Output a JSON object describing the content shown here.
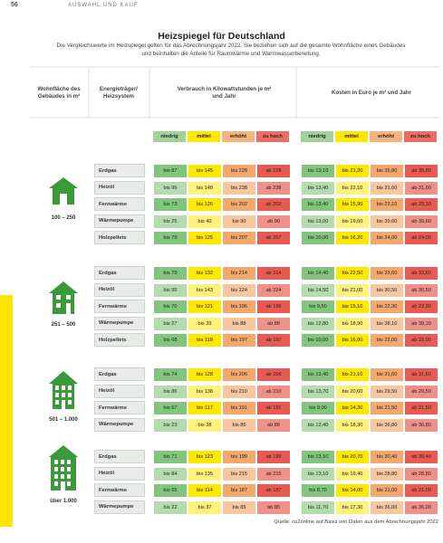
{
  "header": {
    "page": "56",
    "section": "AUSWAHL UND KAUF"
  },
  "title": "Heizspiegel für Deutschland",
  "subtitle": "Die Vergleichswerte im Heizspiegel gelten für das Abrechnungsjahr 2022. Sie beziehen sich auf die gesamte Wohnfläche eines Gebäudes und beinhalten die Anteile für Raumwärme und Warmwasserbereitung.",
  "columns": {
    "area": "Wohnfläche des Gebäudes in m²",
    "energy": "Energieträger/ Heizsystem",
    "consumption": "Verbrauch in Kilowattstunden je m² und Jahr",
    "costs": "Kosten in Euro je m² und Jahr"
  },
  "levels": [
    "niedrig",
    "mittel",
    "erhöht",
    "zu hoch"
  ],
  "groups": [
    {
      "area": "100 – 250",
      "rows": [
        {
          "energy": "Erdgas",
          "consumption": [
            "bis 87",
            "bis 145",
            "bis 228",
            "ab 228"
          ],
          "costs": [
            "bis 13,10",
            "bis 21,20",
            "bis 35,80",
            "ab 35,80"
          ]
        },
        {
          "energy": "Heizöl",
          "consumption": [
            "bis 95",
            "bis 148",
            "bis 238",
            "ab 238"
          ],
          "costs": [
            "bis 13,40",
            "bis 22,10",
            "bis 31,60",
            "ab 31,60"
          ]
        },
        {
          "energy": "Fernwärme",
          "consumption": [
            "bis 73",
            "bis 126",
            "bis 202",
            "ab 202"
          ],
          "costs": [
            "bis 13,40",
            "bis 15,90",
            "bis 23,10",
            "ab 23,10"
          ]
        },
        {
          "energy": "Wärmepumpe",
          "consumption": [
            "bis 25",
            "bis 40",
            "bis 90",
            "ab 90"
          ],
          "costs": [
            "bis 13,00",
            "bis 19,60",
            "bis 39,60",
            "ab 39,60"
          ]
        },
        {
          "energy": "Holzpellets",
          "consumption": [
            "bis 79",
            "bis 125",
            "bis 207",
            "ab 207"
          ],
          "costs": [
            "bis 10,00",
            "bis 16,20",
            "bis 24,00",
            "ab 24,00"
          ]
        }
      ]
    },
    {
      "area": "251 – 500",
      "rows": [
        {
          "energy": "Erdgas",
          "consumption": [
            "bis 79",
            "bis 132",
            "bis 214",
            "ab 214"
          ],
          "costs": [
            "bis 14,40",
            "bis 22,50",
            "bis 33,60",
            "ab 33,60"
          ]
        },
        {
          "energy": "Heizöl",
          "consumption": [
            "bis 90",
            "bis 143",
            "bis 224",
            "ab 224"
          ],
          "costs": [
            "bis 14,50",
            "bis 21,00",
            "bis 30,50",
            "ab 30,50"
          ]
        },
        {
          "energy": "Fernwärme",
          "consumption": [
            "bis 70",
            "bis 121",
            "bis 196",
            "ab 196"
          ],
          "costs": [
            "bis 9,50",
            "bis 15,10",
            "bis 22,30",
            "ab 22,30"
          ]
        },
        {
          "energy": "Wärmepumpe",
          "consumption": [
            "bis 27",
            "bis 39",
            "bis 88",
            "ab 88"
          ],
          "costs": [
            "bis 12,80",
            "bis 18,90",
            "bis 38,10",
            "ab 38,10"
          ]
        },
        {
          "energy": "Holzpellets",
          "consumption": [
            "bis 68",
            "bis 118",
            "bis 197",
            "ab 197"
          ],
          "costs": [
            "bis 10,00",
            "bis 16,00",
            "bis 22,00",
            "ab 22,00"
          ]
        }
      ]
    },
    {
      "area": "501 – 1.000",
      "rows": [
        {
          "energy": "Erdgas",
          "consumption": [
            "bis 74",
            "bis 128",
            "bis 206",
            "ab 206"
          ],
          "costs": [
            "bis 13,40",
            "bis 21,10",
            "bis 31,60",
            "ab 31,60"
          ]
        },
        {
          "energy": "Heizöl",
          "consumption": [
            "bis 86",
            "bis 138",
            "bis 210",
            "ab 210"
          ],
          "costs": [
            "bis 13,70",
            "bis 20,60",
            "bis 29,50",
            "ab 29,50"
          ]
        },
        {
          "energy": "Fernwärme",
          "consumption": [
            "bis 67",
            "bis 117",
            "bis 191",
            "ab 191"
          ],
          "costs": [
            "bis 9,00",
            "bis 14,30",
            "bis 21,50",
            "ab 21,50"
          ]
        },
        {
          "energy": "Wärmepumpe",
          "consumption": [
            "bis 23",
            "bis 38",
            "bis 86",
            "ab 86"
          ],
          "costs": [
            "bis 12,40",
            "bis 18,30",
            "bis 36,80",
            "ab 36,80"
          ]
        }
      ]
    },
    {
      "area": "über 1.000",
      "rows": [
        {
          "energy": "Erdgas",
          "consumption": [
            "bis 71",
            "bis 123",
            "bis 199",
            "ab 199"
          ],
          "costs": [
            "bis 13,10",
            "bis 20,70",
            "bis 30,40",
            "ab 30,40"
          ]
        },
        {
          "energy": "Heizöl",
          "consumption": [
            "bis 84",
            "bis 135",
            "bis 215",
            "ab 215"
          ],
          "costs": [
            "bis 13,10",
            "bis 19,40",
            "bis 28,80",
            "ab 28,80"
          ]
        },
        {
          "energy": "Fernwärme",
          "consumption": [
            "bis 65",
            "bis 114",
            "bis 187",
            "ab 187"
          ],
          "costs": [
            "bis 8,70",
            "bis 14,00",
            "bis 21,00",
            "ab 21,00"
          ]
        },
        {
          "energy": "Wärmepumpe",
          "consumption": [
            "bis 22",
            "bis 37",
            "bis 85",
            "ab 85"
          ],
          "costs": [
            "bis 11,70",
            "bis 17,30",
            "bis 36,00",
            "ab 36,00"
          ]
        }
      ]
    }
  ],
  "source": "Quelle: co2online auf Basis von Daten aus dem Abrechnungsjahr 2022"
}
